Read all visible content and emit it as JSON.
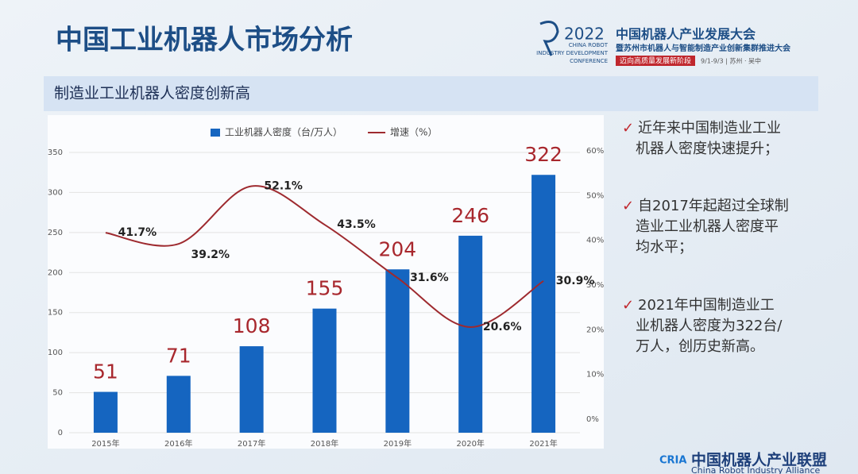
{
  "slide_title": "中国工业机器人市场分析",
  "event": {
    "year": "2022",
    "en_lines": [
      "CHINA ROBOT",
      "INDUSTRY DEVELOPMENT",
      "CONFERENCE"
    ],
    "name": "中国机器人产业发展大会",
    "subname": "暨苏州市机器人与智能制造产业创新集群推进大会",
    "slogan": "迈向高质量发展新阶段",
    "date": "9/1-9/3 | 苏州 · 吴中"
  },
  "section_title": "制造业工业机器人密度创新高",
  "bullets": [
    [
      "近年来中国制造业工业",
      "机器人密度快速提升；"
    ],
    [
      "自2017年起超过全球制",
      "造业工业机器人密度平",
      "均水平；"
    ],
    [
      "2021年中国制造业工",
      "业机器人密度为322台/",
      "万人，创历史新高。"
    ]
  ],
  "footer": {
    "abbr": "CRIA",
    "name": "中国机器人产业联盟",
    "en": "China Robot Industry Alliance"
  },
  "chart_data": {
    "type": "bar",
    "categories": [
      "2015年",
      "2016年",
      "2017年",
      "2018年",
      "2019年",
      "2020年",
      "2021年"
    ],
    "series": [
      {
        "name": "工业机器人密度（台/万人）",
        "color": "#1565c0",
        "values": [
          51,
          71,
          108,
          155,
          204,
          246,
          322
        ]
      },
      {
        "name": "增速（%）",
        "color": "#9e2a2f",
        "type": "line",
        "axis": "y2",
        "values": [
          41.7,
          39.2,
          52.1,
          43.5,
          31.6,
          20.6,
          30.9
        ],
        "value_labels": [
          "41.7%",
          "39.2%",
          "52.1%",
          "43.5%",
          "31.6%",
          "20.6%",
          "30.9%"
        ]
      }
    ],
    "ylim": [
      0,
      350
    ],
    "yticks": [
      0,
      50,
      100,
      150,
      200,
      250,
      300,
      350
    ],
    "y2lim": [
      0,
      60
    ],
    "y2ticks": [
      {
        "value": 0,
        "label": "0%"
      },
      {
        "value": 10,
        "label": "10%"
      },
      {
        "value": 20,
        "label": "20%"
      },
      {
        "value": 30,
        "label": "30%"
      },
      {
        "value": 40,
        "label": "40%"
      },
      {
        "value": 50,
        "label": "50%"
      },
      {
        "value": 60,
        "label": "60%"
      }
    ],
    "grid": true,
    "legend": "top"
  }
}
